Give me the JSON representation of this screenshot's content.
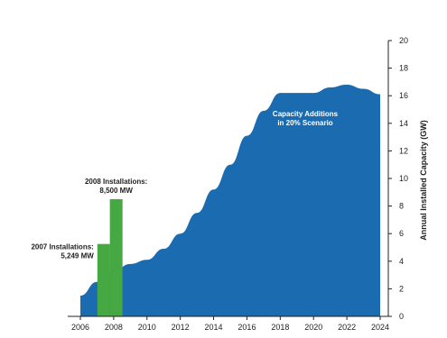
{
  "chart_data": {
    "type": "area",
    "ylabel": "Annual Installed Capacity (GW)",
    "ylim": [
      0,
      20
    ],
    "xlim": [
      2006,
      2024
    ],
    "yticks": [
      0,
      2,
      4,
      6,
      8,
      10,
      12,
      14,
      16,
      18,
      20
    ],
    "xtick_labels": [
      "2006",
      "2008",
      "2010",
      "2012",
      "2014",
      "2016",
      "2018",
      "2020",
      "2022",
      "2024"
    ],
    "area_series": {
      "name": "Capacity Additions in 20% Scenario",
      "label_lines": [
        "Capacity Additions",
        "in 20% Scenario"
      ],
      "color": "#1a6bb0",
      "x": [
        2006,
        2007,
        2008,
        2009,
        2010,
        2011,
        2012,
        2013,
        2014,
        2015,
        2016,
        2017,
        2018,
        2019,
        2020,
        2021,
        2022,
        2023,
        2024
      ],
      "y": [
        1.5,
        2.5,
        3.3,
        3.8,
        4.1,
        4.9,
        6.0,
        7.5,
        9.2,
        11.0,
        13.1,
        14.9,
        16.2,
        16.2,
        16.2,
        16.6,
        16.8,
        16.5,
        16.1
      ]
    },
    "bars": [
      {
        "year": "2007",
        "x": 2007.4,
        "value": 5.249,
        "color": "#46a843",
        "label_lines": [
          "2007 Installations:",
          "5,249 MW"
        ]
      },
      {
        "year": "2008",
        "x": 2008.15,
        "value": 8.5,
        "color": "#46a843",
        "label_lines": [
          "2008 Installations:",
          "8,500 MW"
        ]
      }
    ]
  }
}
